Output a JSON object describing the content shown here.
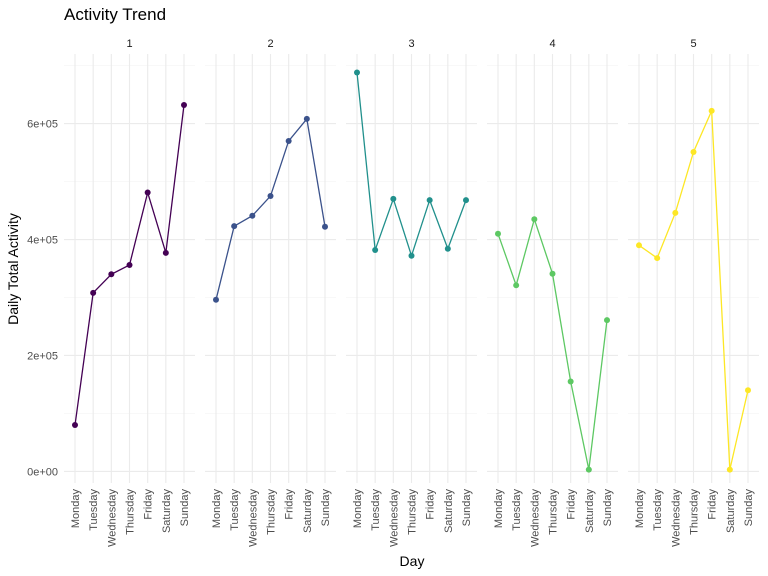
{
  "chart_data": {
    "type": "line",
    "title": "Activity Trend",
    "xlabel": "Day",
    "ylabel": "Daily Total Activity",
    "categories": [
      "Monday",
      "Tuesday",
      "Wednesday",
      "Thursday",
      "Friday",
      "Saturday",
      "Sunday"
    ],
    "ylim": [
      -20000,
      720000
    ],
    "yticks": [
      0,
      200000,
      400000,
      600000
    ],
    "ytick_labels": [
      "0e+00",
      "2e+05",
      "4e+05",
      "6e+05"
    ],
    "grid": true,
    "legend": "none",
    "facets": [
      {
        "label": "1",
        "color": "#440154",
        "values": [
          80000,
          308000,
          340000,
          356000,
          481000,
          377000,
          632000
        ]
      },
      {
        "label": "2",
        "color": "#3B528B",
        "values": [
          296000,
          423000,
          441000,
          475000,
          570000,
          608000,
          422000
        ]
      },
      {
        "label": "3",
        "color": "#21908C",
        "values": [
          688000,
          382000,
          470000,
          372000,
          468000,
          384000,
          468000
        ]
      },
      {
        "label": "4",
        "color": "#5DC863",
        "values": [
          410000,
          321000,
          435000,
          341000,
          155000,
          3000,
          261000
        ]
      },
      {
        "label": "5",
        "color": "#FDE725",
        "values": [
          390000,
          368000,
          446000,
          551000,
          622000,
          3000,
          140000
        ]
      }
    ]
  }
}
